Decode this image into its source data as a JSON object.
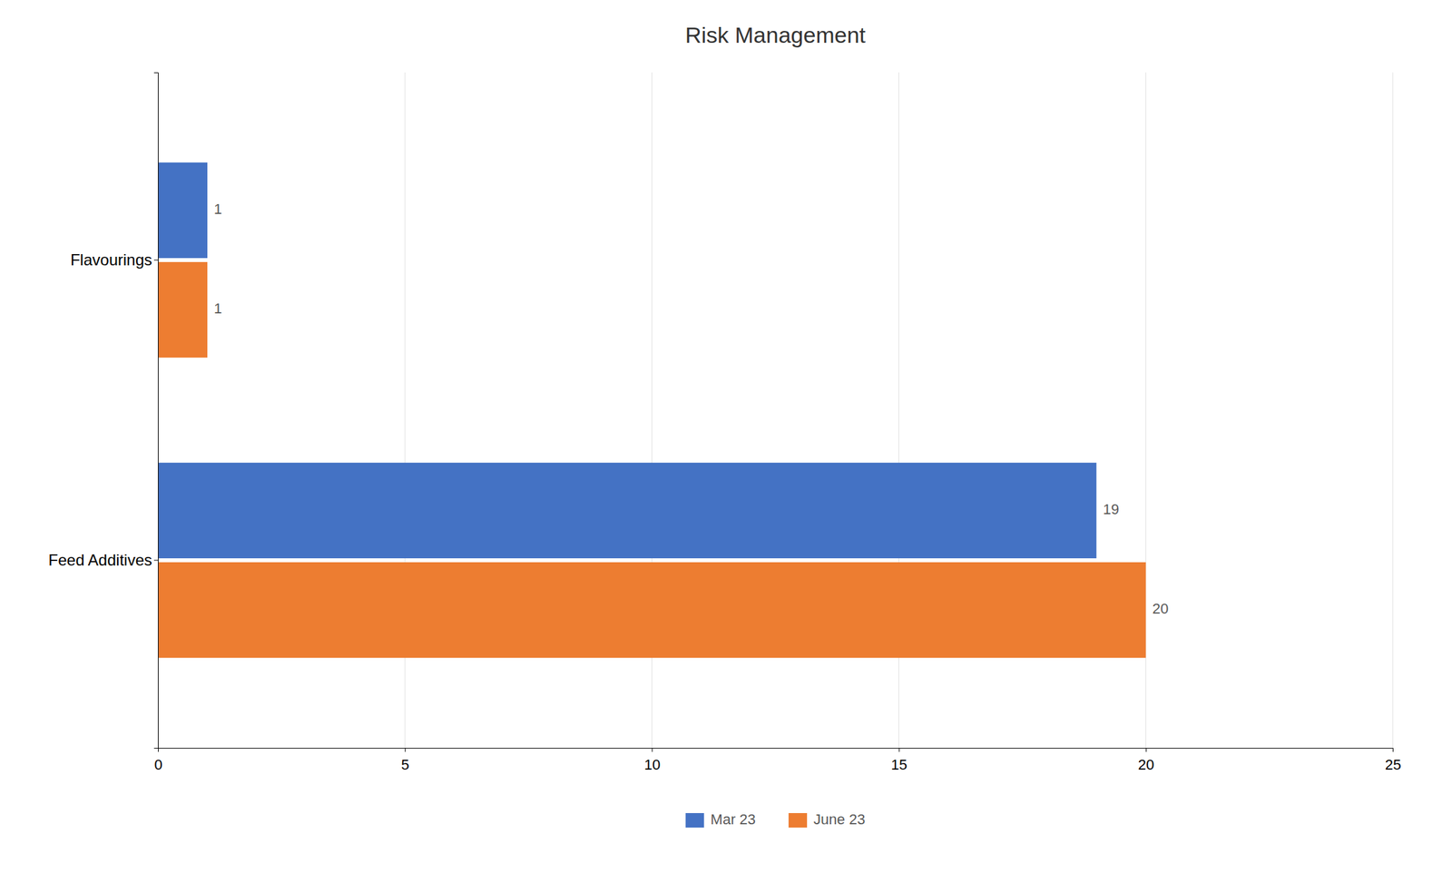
{
  "chart_data": {
    "type": "bar",
    "orientation": "horizontal",
    "title": "Risk Management",
    "categories": [
      "Feed Additives",
      "Flavourings"
    ],
    "series": [
      {
        "name": "Mar 23",
        "color": "#4472C4",
        "values": [
          19,
          1
        ]
      },
      {
        "name": "June 23",
        "color": "#ED7D31",
        "values": [
          20,
          1
        ]
      }
    ],
    "xlim": [
      0,
      25
    ],
    "xticks": [
      0,
      5,
      10,
      15,
      20,
      25
    ],
    "grid": true,
    "data_labels": true,
    "legend": "bottom"
  }
}
